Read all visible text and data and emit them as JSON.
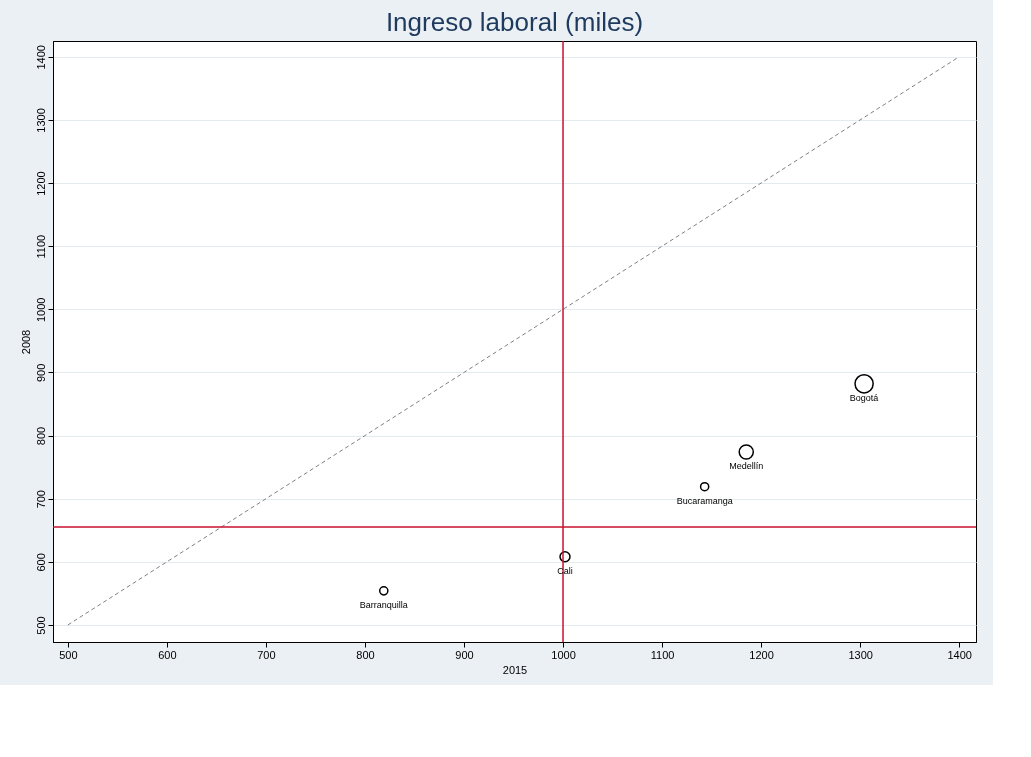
{
  "chart_data": {
    "type": "bubble",
    "title": "Ingreso laboral (miles)",
    "xlabel": "2015",
    "ylabel": "2008",
    "x": [
      819,
      1002,
      1143,
      1185,
      1304
    ],
    "series": [
      {
        "color": "#000000",
        "values": [
          554,
          608,
          719,
          774,
          882
        ],
        "sizes": [
          0.2,
          0.3,
          0.2,
          0.6,
          1
        ]
      },
      {
        "type": "line",
        "color": "#808080",
        "line_style": "dashed",
        "x": [
          500,
          1400
        ],
        "values": [
          500,
          1400
        ]
      }
    ],
    "annotations": [
      {
        "text": "Barranquilla",
        "x": 819,
        "y": 554
      },
      {
        "text": "Cali",
        "x": 1002,
        "y": 608
      },
      {
        "text": "Bucaramanga",
        "x": 1143,
        "y": 719
      },
      {
        "text": "Medellín",
        "x": 1185,
        "y": 774
      },
      {
        "text": "Bogotá",
        "x": 1304,
        "y": 882
      }
    ],
    "ref_lines": [
      {
        "axis": "x",
        "value": 1000,
        "color": "#c8102e"
      },
      {
        "axis": "y",
        "value": 655,
        "color": "#c8102e"
      }
    ],
    "xlim": [
      485,
      1417
    ],
    "ylim": [
      473,
      1425
    ],
    "xticks": [
      500,
      600,
      700,
      800,
      900,
      1000,
      1100,
      1200,
      1300,
      1400
    ],
    "yticks": [
      500,
      600,
      700,
      800,
      900,
      1000,
      1100,
      1200,
      1300,
      1400
    ],
    "grid": "y",
    "legend": false
  }
}
